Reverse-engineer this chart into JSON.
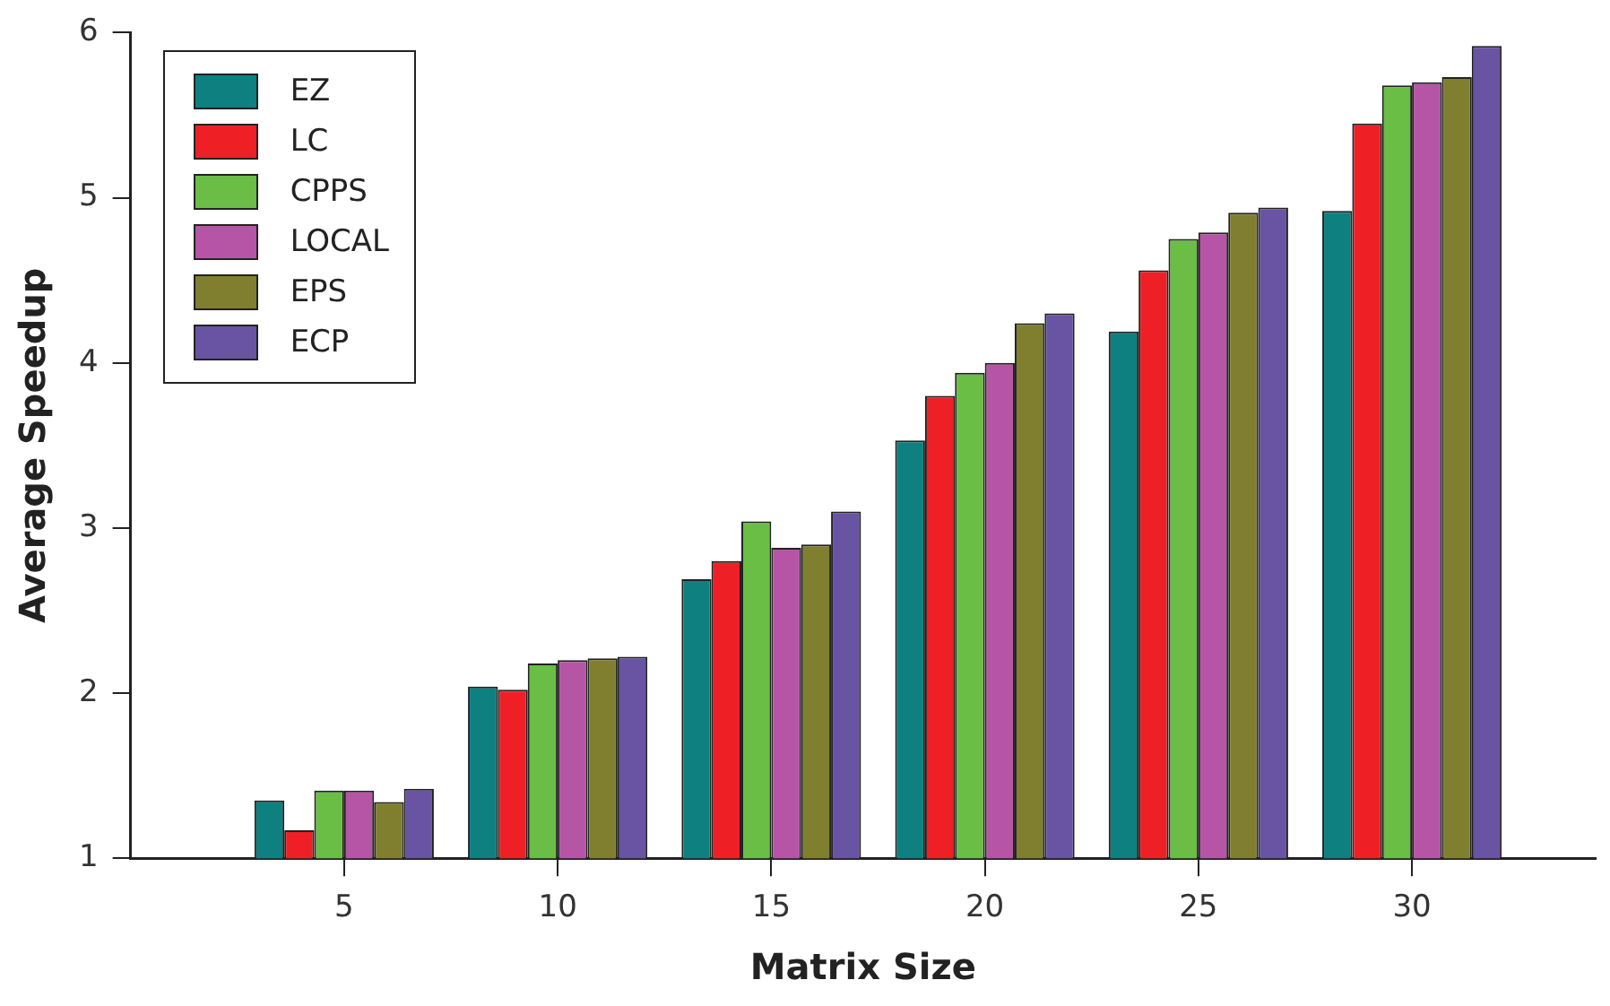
{
  "chart_data": {
    "type": "bar",
    "xlabel": "Matrix Size",
    "ylabel": "Average Speedup",
    "x": [
      5,
      10,
      15,
      20,
      25,
      30
    ],
    "xlim": [
      0,
      34.3
    ],
    "xticks": [
      5,
      10,
      15,
      20,
      25,
      30
    ],
    "ylim": [
      1,
      6
    ],
    "yticks": [
      1,
      2,
      3,
      4,
      5,
      6
    ],
    "grid": false,
    "legend": "top left",
    "series": [
      {
        "name": "EZ",
        "color": "#0e8080",
        "values": [
          1.35,
          2.04,
          2.69,
          3.53,
          4.19,
          4.92
        ]
      },
      {
        "name": "LC",
        "color": "#ee2026",
        "values": [
          1.17,
          2.02,
          2.8,
          3.8,
          4.56,
          5.45
        ]
      },
      {
        "name": "CPPS",
        "color": "#6abd45",
        "values": [
          1.41,
          2.18,
          3.04,
          3.94,
          4.75,
          5.68
        ]
      },
      {
        "name": "LOCAL",
        "color": "#b655a5",
        "values": [
          1.41,
          2.2,
          2.88,
          4.0,
          4.79,
          5.7
        ]
      },
      {
        "name": "EPS",
        "color": "#7f7f2f",
        "values": [
          1.34,
          2.21,
          2.9,
          4.24,
          4.91,
          5.73
        ]
      },
      {
        "name": "ECP",
        "color": "#6953a3",
        "values": [
          1.42,
          2.22,
          3.1,
          4.3,
          4.94,
          5.92
        ]
      }
    ]
  }
}
